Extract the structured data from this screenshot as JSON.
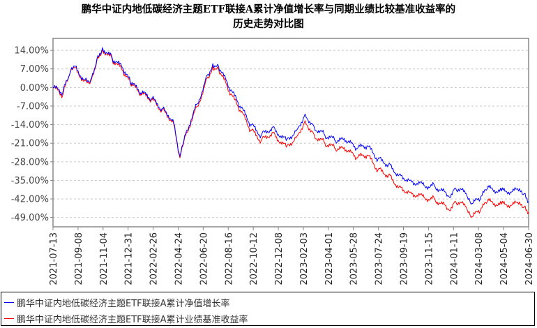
{
  "chart_data": {
    "type": "line",
    "title": [
      "鹏华中证内地低碳经济主题ETF联接A累计净值增长率与同期业绩比较基准收益率的",
      "历史走势对比图"
    ],
    "xlabel": "",
    "ylabel": "",
    "ylim": [
      -52.5,
      18.5
    ],
    "yticks": [
      14,
      7,
      0,
      -7,
      -14,
      -21,
      -28,
      -35,
      -42,
      -49
    ],
    "ytick_labels": [
      "14.00%",
      "7.00%",
      "0.00%",
      "-7.00%",
      "-14.00%",
      "-21.00%",
      "-28.00%",
      "-35.00%",
      "-42.00%",
      "-49.00%"
    ],
    "xtick_labels": [
      "2021-07-13",
      "2021-09-08",
      "2021-11-04",
      "2021-12-31",
      "2022-02-26",
      "2022-04-24",
      "2022-06-20",
      "2022-08-16",
      "2022-10-12",
      "2022-12-08",
      "2023-02-03",
      "2023-04-01",
      "2023-05-28",
      "2023-07-24",
      "2023-09-19",
      "2023-11-15",
      "2024-01-11",
      "2024-03-08",
      "2024-05-04",
      "2024-06-30"
    ],
    "grid": true,
    "legend_position": "bottom",
    "x": [
      "2021-07-13",
      "2021-08-04",
      "2021-08-20",
      "2021-08-31",
      "2021-09-22",
      "2021-10-07",
      "2021-10-23",
      "2021-11-03",
      "2021-11-25",
      "2021-12-20",
      "2022-01-05",
      "2022-01-29",
      "2022-02-22",
      "2022-03-18",
      "2022-04-12",
      "2022-04-28",
      "2022-05-09",
      "2022-06-07",
      "2022-07-01",
      "2022-07-12",
      "2022-07-25",
      "2022-08-18",
      "2022-09-12",
      "2022-10-06",
      "2022-10-30",
      "2022-11-24",
      "2022-12-26",
      "2023-01-19",
      "2023-02-07",
      "2023-02-28",
      "2023-03-24",
      "2023-04-17",
      "2023-05-11",
      "2023-06-04",
      "2023-06-28",
      "2023-07-23",
      "2023-08-16",
      "2023-09-09",
      "2023-10-04",
      "2023-11-05",
      "2023-11-29",
      "2023-12-31",
      "2024-01-16",
      "2024-02-09",
      "2024-02-20",
      "2024-03-12",
      "2024-03-28",
      "2024-04-29",
      "2024-06-07",
      "2024-06-20",
      "2024-06-30"
    ],
    "series": [
      {
        "name": "鹏华中证内地低碳经济主题ETF联接A累计净值增长率",
        "color": "#0000ff",
        "values": [
          0,
          -2,
          5,
          8,
          3,
          3,
          12,
          15,
          11,
          7,
          2,
          -2,
          -4,
          -8,
          -12,
          -26,
          -18,
          -6,
          5,
          9,
          8,
          0,
          -7,
          -14,
          -18,
          -15,
          -20,
          -16,
          -10,
          -15,
          -18,
          -20,
          -20,
          -23,
          -22,
          -27,
          -29,
          -33,
          -35,
          -37,
          -37,
          -41,
          -38,
          -40,
          -44,
          -42,
          -38,
          -39,
          -39,
          -40,
          -43
        ]
      },
      {
        "name": "鹏华中证内地低碳经济主题ETF联接A累计业绩基准收益率",
        "color": "#ff0000",
        "values": [
          0,
          -3,
          5,
          7.5,
          2.5,
          2.5,
          11.5,
          14.5,
          10.5,
          6,
          1.5,
          -2.5,
          -4.5,
          -8.5,
          -12.5,
          -26.5,
          -18.5,
          -7,
          4,
          8,
          7,
          -1.5,
          -8.5,
          -16,
          -20,
          -17,
          -22.5,
          -18.5,
          -12.5,
          -18,
          -21,
          -23,
          -23.5,
          -26.5,
          -25.5,
          -31,
          -33,
          -37.5,
          -39.5,
          -41.5,
          -42,
          -46,
          -43,
          -45,
          -49,
          -46.5,
          -43,
          -44,
          -44,
          -45,
          -47
        ]
      }
    ]
  }
}
